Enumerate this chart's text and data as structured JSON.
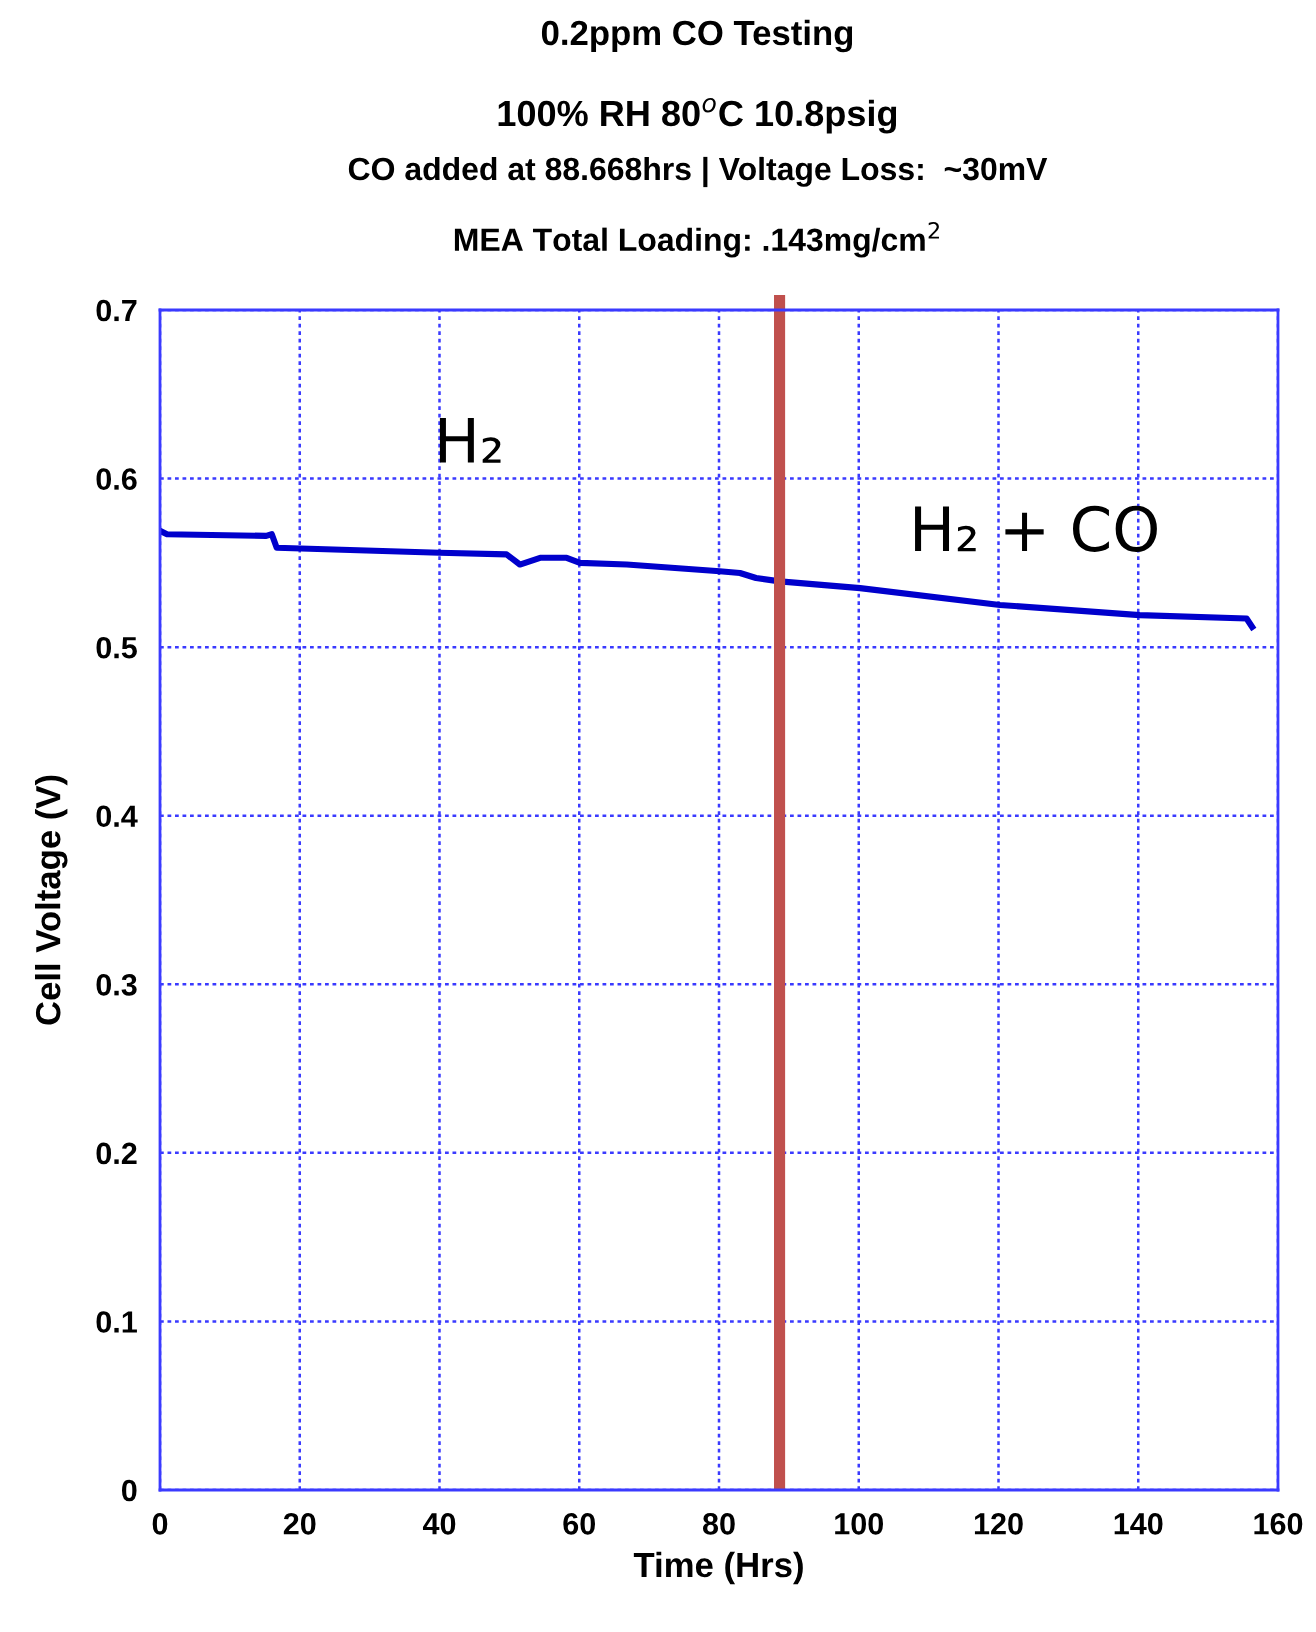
{
  "chart_data": {
    "type": "line",
    "title": "0.2ppm CO Testing",
    "subtitle": "100% RH 80$^{o}$C 10.8psig",
    "xlabel": "Time (Hrs)",
    "ylabel": "Cell Voltage (V)",
    "annotations": [
      "CO added at 88.668hrs | Voltage Loss:  ~30mV",
      "MEA Total Loading: .143mg/cm$^{2}$",
      "H₂",
      "H₂ + CO"
    ],
    "series": [
      {
        "color": "#0000cc",
        "x": [
          0,
          1,
          15.2,
          16,
          16.7,
          40,
          49.6,
          51.5,
          54.4,
          58.2,
          60.1,
          66.8,
          80.1,
          83,
          85.3,
          88.7,
          100.2,
          120.2,
          140.2,
          155.5,
          156.3
        ],
        "values": [
          0.569,
          0.567,
          0.566,
          0.567,
          0.559,
          0.556,
          0.555,
          0.549,
          0.553,
          0.553,
          0.55,
          0.549,
          0.545,
          0.544,
          0.541,
          0.539,
          0.535,
          0.525,
          0.519,
          0.517,
          0.512
        ]
      }
    ],
    "ref_lines": [
      {
        "axis": "x",
        "value": 88.668,
        "color": "#c0504d"
      }
    ],
    "xlim": [
      0,
      160
    ],
    "xticks": [
      0,
      20,
      40,
      60,
      80,
      100,
      120,
      140,
      160
    ],
    "ylim": [
      0,
      0.7
    ],
    "yticks": [
      0,
      0.1,
      0.2,
      0.3,
      0.4,
      0.5,
      0.6,
      0.7
    ],
    "grid": true
  }
}
